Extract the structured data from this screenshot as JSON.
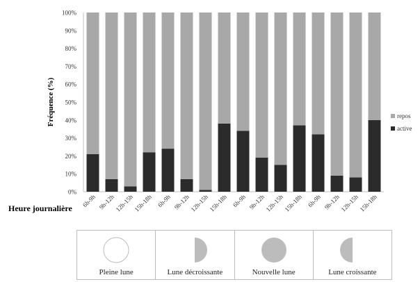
{
  "chart_data": {
    "type": "bar",
    "stacked": true,
    "percent": true,
    "categories": [
      "6h-9h",
      "9h-12h",
      "12h-15h",
      "15h-18h",
      "6h-9h",
      "9h-12h",
      "12h-15h",
      "15h-18h",
      "6h-9h",
      "9h-12h",
      "12h-15h",
      "15h-18h",
      "6h-9h",
      "9h-12h",
      "12h-15h",
      "15h-18h"
    ],
    "series": [
      {
        "name": "active",
        "color": "#2b2b2b",
        "values": [
          21,
          7,
          3,
          22,
          24,
          7,
          1,
          38,
          34,
          19,
          15,
          37,
          32,
          9,
          8,
          40
        ]
      },
      {
        "name": "repos",
        "color": "#a8a8a8",
        "values": [
          79,
          93,
          97,
          78,
          76,
          93,
          99,
          62,
          66,
          81,
          85,
          63,
          68,
          91,
          92,
          60
        ]
      }
    ],
    "ylabel": "Fréquence (%)",
    "xlabel": "Heure journalière",
    "ylim": [
      0,
      100
    ],
    "yticks": [
      "0%",
      "10%",
      "20%",
      "30%",
      "40%",
      "50%",
      "60%",
      "70%",
      "80%",
      "90%",
      "100%"
    ],
    "legend_position": "right",
    "grid": false
  },
  "phases": [
    {
      "label": "Pleine lune",
      "icon": "full-moon-icon"
    },
    {
      "label": "Lune décroissante",
      "icon": "waning-moon-icon"
    },
    {
      "label": "Nouvelle lune",
      "icon": "new-moon-icon"
    },
    {
      "label": "Lune croissante",
      "icon": "waxing-moon-icon"
    }
  ]
}
